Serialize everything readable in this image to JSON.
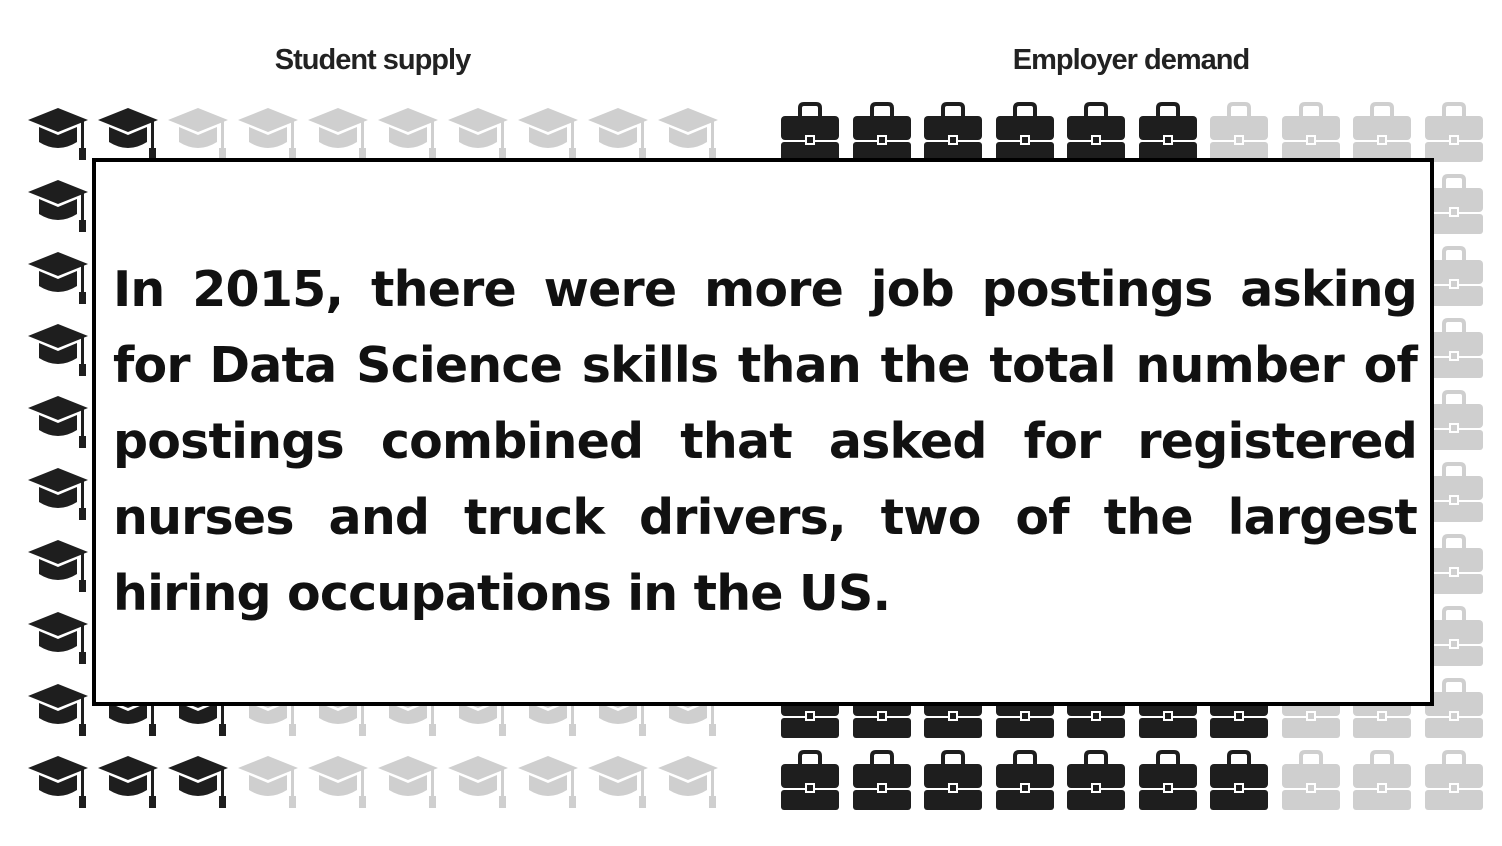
{
  "headings": {
    "supply": "Student supply",
    "demand": "Employer demand"
  },
  "statement": "In 2015, there were more job postings asking for Data Science skills than the total number of postings combined that asked for registered nurses and truck drivers, two of the largest hiring occupations in the US.",
  "colors": {
    "filled_icon": "#1e1e1e",
    "empty_icon": "#cfcfcf",
    "border": "#000000"
  },
  "icons": {
    "supply": "graduation-cap-icon",
    "demand": "briefcase-icon"
  },
  "visible_grid": {
    "supply_rows": [
      [
        2,
        10
      ],
      [
        1,
        10
      ],
      [
        1,
        10
      ],
      [
        1,
        10
      ],
      [
        1,
        10
      ],
      [
        1,
        10
      ],
      [
        1,
        10
      ],
      [
        1,
        10
      ],
      [
        3,
        10
      ],
      [
        3,
        10
      ]
    ],
    "demand_rows": [
      [
        6,
        10
      ],
      [
        0,
        10
      ],
      [
        0,
        10
      ],
      [
        0,
        10
      ],
      [
        0,
        10
      ],
      [
        0,
        10
      ],
      [
        0,
        10
      ],
      [
        0,
        10
      ],
      [
        7,
        10
      ],
      [
        7,
        10
      ]
    ]
  }
}
